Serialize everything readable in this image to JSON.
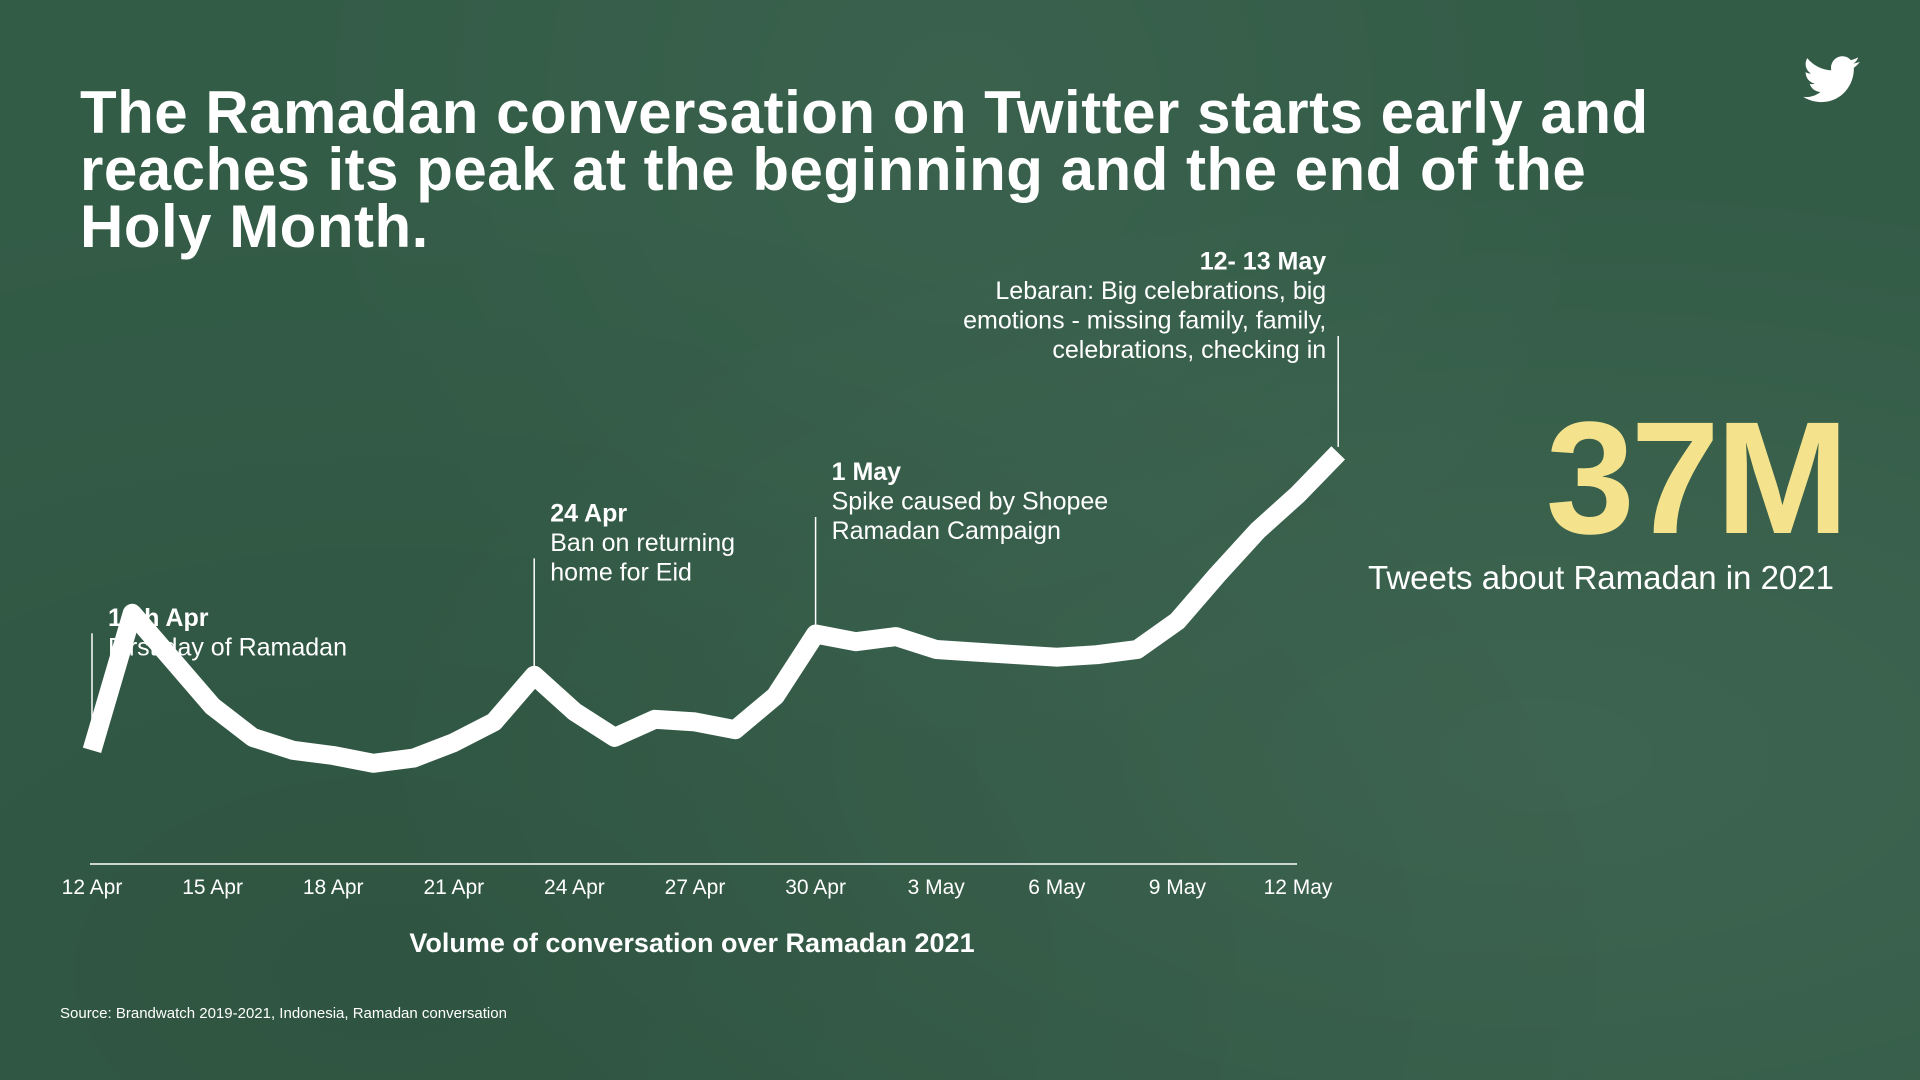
{
  "headline": "The Ramadan conversation on Twitter starts early and reaches its peak at the beginning and the end of the Holy Month.",
  "stat": {
    "value": "37M",
    "caption": "Tweets about Ramadan in 2021"
  },
  "source": "Source: Brandwatch 2019-2021, Indonesia, Ramadan conversation",
  "icon": "twitter-bird-icon",
  "colors": {
    "background": "#335c47",
    "line": "#ffffff",
    "accent": "#f4e28c"
  },
  "chart_data": {
    "type": "line",
    "title": "",
    "xlabel": "Volume of conversation over Ramadan 2021",
    "ylabel": "",
    "grid": false,
    "categories": [
      "12 Apr",
      "13 Apr",
      "14 Apr",
      "15 Apr",
      "16 Apr",
      "17 Apr",
      "18 Apr",
      "19 Apr",
      "20 Apr",
      "21 Apr",
      "22 Apr",
      "23 Apr",
      "24 Apr",
      "25 Apr",
      "26 Apr",
      "27 Apr",
      "28 Apr",
      "29 Apr",
      "30 Apr",
      "1 May",
      "2 May",
      "3 May",
      "4 May",
      "5 May",
      "6 May",
      "7 May",
      "8 May",
      "9 May",
      "10 May",
      "11 May",
      "12 May",
      "13 May"
    ],
    "x_tick_labels": [
      "12 Apr",
      "15 Apr",
      "18 Apr",
      "21 Apr",
      "24 Apr",
      "27 Apr",
      "30 Apr",
      "3 May",
      "6 May",
      "9 May",
      "12 May"
    ],
    "values": [
      25,
      78,
      60,
      42,
      30,
      25,
      23,
      20,
      22,
      28,
      36,
      54,
      40,
      30,
      37,
      36,
      33,
      46,
      70,
      67,
      69,
      64,
      63,
      62,
      61,
      62,
      64,
      75,
      93,
      110,
      124,
      140
    ],
    "ylim": [
      0,
      145
    ],
    "annotations": [
      {
        "category": "12 Apr",
        "title": "13th Apr",
        "lines": [
          "First day of Ramadan"
        ],
        "align": "start"
      },
      {
        "category": "23 Apr",
        "title": "24 Apr",
        "lines": [
          "Ban on returning",
          "home for Eid"
        ],
        "align": "start"
      },
      {
        "category": "30 Apr",
        "title": "1 May",
        "lines": [
          "Spike caused by Shopee",
          "Ramadan Campaign"
        ],
        "align": "start"
      },
      {
        "category": "13 May",
        "title": "12- 13 May",
        "lines": [
          "Lebaran: Big celebrations, big",
          "emotions - missing family, family,",
          "celebrations, checking in"
        ],
        "align": "end"
      }
    ]
  }
}
